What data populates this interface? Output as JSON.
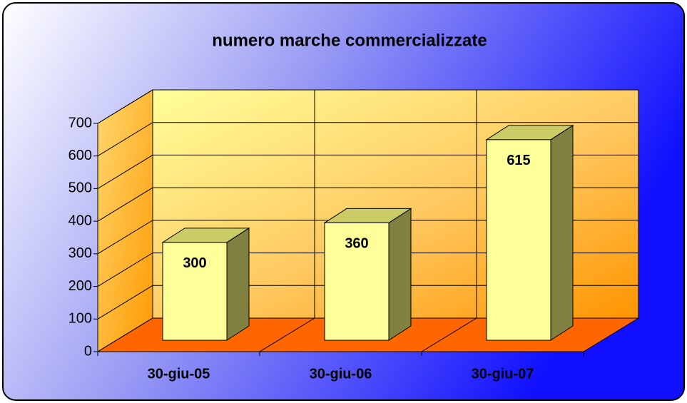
{
  "chart_data": {
    "type": "bar3d",
    "title": "numero marche commercializzate",
    "categories": [
      "30-giu-05",
      "30-giu-06",
      "30-giu-07"
    ],
    "values": [
      300,
      360,
      615
    ],
    "color": "#ffff99",
    "ylim": [
      0,
      700
    ],
    "yticks": [
      0,
      100,
      200,
      300,
      400,
      500,
      600,
      700
    ],
    "grid": true
  }
}
